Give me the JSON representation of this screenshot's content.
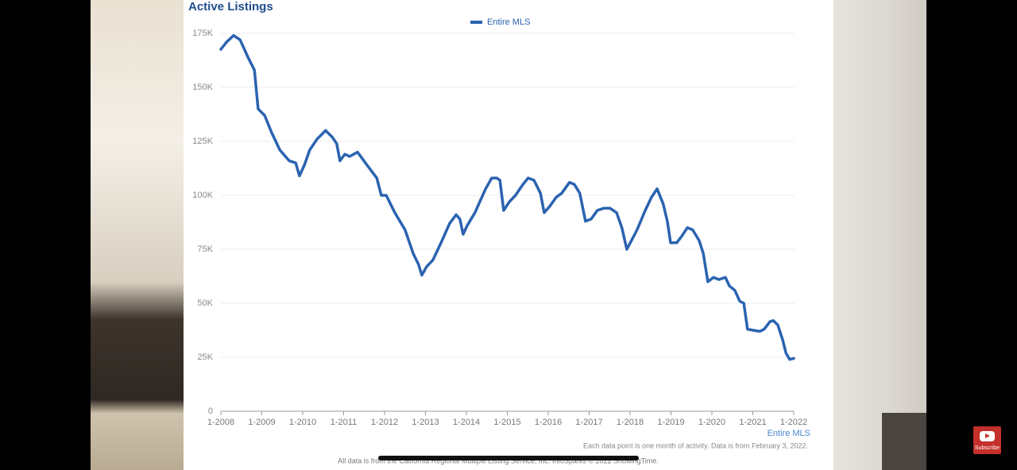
{
  "chart_data": {
    "type": "line",
    "title": "Active Listings",
    "x_label": "Entire MLS",
    "x": [
      2008.0,
      2008.14,
      2008.31,
      2008.47,
      2008.66,
      2008.82,
      2008.91,
      2009.07,
      2009.24,
      2009.44,
      2009.67,
      2009.83,
      2009.92,
      2010.04,
      2010.17,
      2010.35,
      2010.56,
      2010.72,
      2010.83,
      2010.91,
      2011.03,
      2011.15,
      2011.34,
      2011.57,
      2011.81,
      2011.92,
      2012.04,
      2012.25,
      2012.5,
      2012.7,
      2012.83,
      2012.91,
      2013.03,
      2013.18,
      2013.38,
      2013.59,
      2013.75,
      2013.84,
      2013.92,
      2014.02,
      2014.21,
      2014.47,
      2014.62,
      2014.74,
      2014.82,
      2014.91,
      2015.05,
      2015.2,
      2015.38,
      2015.51,
      2015.65,
      2015.81,
      2015.9,
      2016.04,
      2016.19,
      2016.33,
      2016.52,
      2016.64,
      2016.77,
      2016.91,
      2017.05,
      2017.2,
      2017.36,
      2017.51,
      2017.67,
      2017.8,
      2017.92,
      2018.06,
      2018.17,
      2018.37,
      2018.52,
      2018.66,
      2018.81,
      2018.91,
      2018.99,
      2019.14,
      2019.26,
      2019.4,
      2019.53,
      2019.69,
      2019.79,
      2019.9,
      2020.04,
      2020.17,
      2020.33,
      2020.43,
      2020.56,
      2020.68,
      2020.78,
      2020.87,
      2021.01,
      2021.17,
      2021.28,
      2021.42,
      2021.5,
      2021.61,
      2021.73,
      2021.81,
      2021.9,
      2022.0
    ],
    "series": [
      {
        "name": "Entire MLS",
        "color": "#2b63b0",
        "values": [
          167600,
          171000,
          174000,
          172000,
          164000,
          158000,
          140000,
          137000,
          129000,
          121000,
          116000,
          115000,
          109000,
          114000,
          121000,
          126000,
          130000,
          127000,
          124000,
          116000,
          119000,
          118000,
          120000,
          114000,
          108000,
          100000,
          100000,
          92000,
          84000,
          73000,
          68000,
          63000,
          67000,
          70000,
          78000,
          87000,
          91000,
          89000,
          82000,
          86000,
          92000,
          103000,
          108000,
          108000,
          107000,
          93000,
          97000,
          100000,
          105000,
          108000,
          107000,
          101000,
          92000,
          95000,
          99000,
          101000,
          106000,
          105000,
          101000,
          88000,
          89000,
          93000,
          94000,
          94000,
          92000,
          85000,
          75000,
          80000,
          84000,
          93000,
          99000,
          103000,
          96000,
          88000,
          78000,
          78000,
          81000,
          85000,
          84000,
          79000,
          73000,
          60000,
          62000,
          61000,
          62000,
          58000,
          56000,
          51000,
          50000,
          38000,
          37500,
          37000,
          38000,
          41500,
          42000,
          40000,
          33000,
          27000,
          24000,
          24500
        ]
      }
    ],
    "xlim": [
      2008,
      2022
    ],
    "xticks": [
      {
        "value": 2008,
        "label": "1-2008"
      },
      {
        "value": 2009,
        "label": "1-2009"
      },
      {
        "value": 2010,
        "label": "1-2010"
      },
      {
        "value": 2011,
        "label": "1-2011"
      },
      {
        "value": 2012,
        "label": "1-2012"
      },
      {
        "value": 2013,
        "label": "1-2013"
      },
      {
        "value": 2014,
        "label": "1-2014"
      },
      {
        "value": 2015,
        "label": "1-2015"
      },
      {
        "value": 2016,
        "label": "1-2016"
      },
      {
        "value": 2017,
        "label": "1-2017"
      },
      {
        "value": 2018,
        "label": "1-2018"
      },
      {
        "value": 2019,
        "label": "1-2019"
      },
      {
        "value": 2020,
        "label": "1-2020"
      },
      {
        "value": 2021,
        "label": "1-2021"
      },
      {
        "value": 2022,
        "label": "1-2022"
      }
    ],
    "ylim": [
      0,
      175000
    ],
    "yticks": [
      0,
      {
        "value": 25000,
        "label": "25K"
      },
      {
        "value": 50000,
        "label": "50K"
      },
      {
        "value": 75000,
        "label": "75K"
      },
      {
        "value": 100000,
        "label": "100K"
      },
      {
        "value": 125000,
        "label": "125K"
      },
      {
        "value": 150000,
        "label": "150K"
      },
      {
        "value": 175000,
        "label": "175K"
      }
    ],
    "grid": true,
    "legend": "top"
  },
  "footnotes": [
    "Each data point is one month of activity. Data is from February 3, 2022.",
    "All data is from the California Regional Multiple Listing Service, Inc. InfoSparks © 2022 ShowingTime."
  ],
  "subscribe": "Subscribe"
}
